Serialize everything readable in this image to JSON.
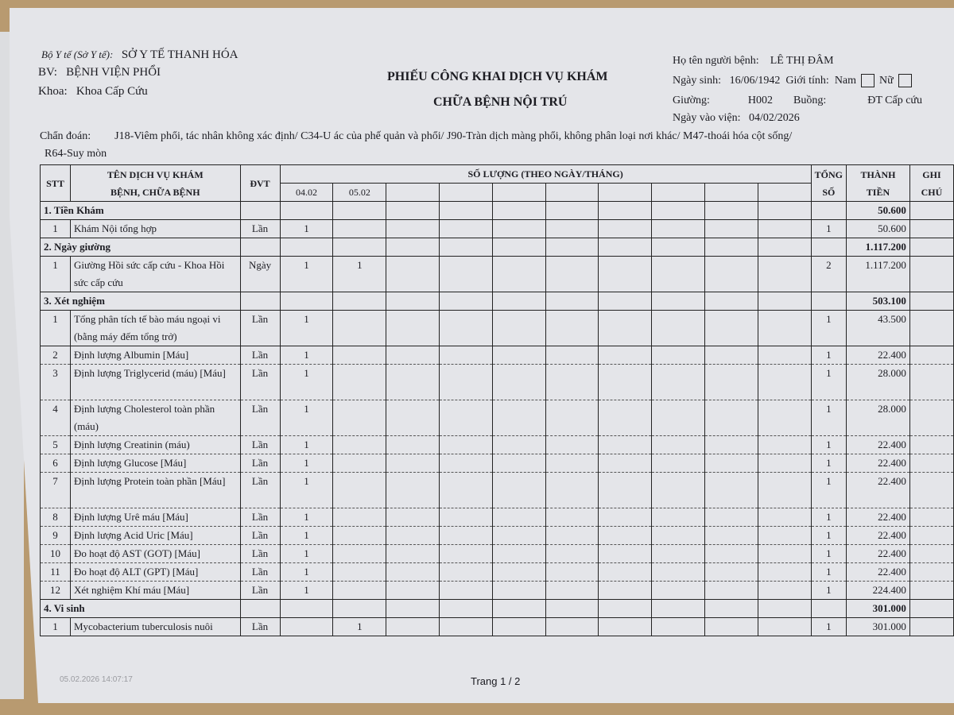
{
  "header": {
    "bo_y_te_label": "Bộ Y tế (Sở Y tế):",
    "bo_y_te": "SỞ Y TẾ THANH HÓA",
    "bv_label": "BV:",
    "bv": "BỆNH VIỆN PHỔI",
    "khoa_label": "Khoa:",
    "khoa": "Khoa Cấp Cứu",
    "title_line1": "PHIẾU CÔNG KHAI DỊCH VỤ KHÁM",
    "title_line2": "CHỮA BỆNH NỘI TRÚ",
    "patient_label": "Họ tên người bệnh:",
    "patient": "LÊ THỊ ĐÂM",
    "dob_label": "Ngày sinh:",
    "dob": "16/06/1942",
    "gender_label": "Giới tính:",
    "male": "Nam",
    "female": "Nữ",
    "bed_label": "Giường:",
    "bed": "H002",
    "room_label": "Buồng:",
    "room": "ĐT Cấp cứu",
    "admit_label": "Ngày vào viện:",
    "admit": "04/02/2026",
    "diag_label": "Chẩn đoán:",
    "diag_line1": "J18-Viêm phổi, tác nhân không xác định/ C34-U ác của phế quản và phổi/ J90-Tràn dịch màng phổi, không phân loại nơi khác/ M47-thoái hóa cột sống/",
    "diag_line2": "R64-Suy mòn"
  },
  "table": {
    "col_stt": "STT",
    "col_name_1": "TÊN DỊCH VỤ KHÁM",
    "col_name_2": "BỆNH, CHỮA BỆNH",
    "col_dvt": "ĐVT",
    "col_qty": "SỐ LƯỢNG (THEO NGÀY/THÁNG)",
    "dates": [
      "04.02",
      "05.02",
      "",
      "",
      "",
      "",
      "",
      "",
      "",
      ""
    ],
    "col_total_1": "TỔNG",
    "col_total_2": "SỐ",
    "col_amount_1": "THÀNH",
    "col_amount_2": "TIỀN",
    "col_note_1": "GHI",
    "col_note_2": "CHÚ",
    "rows": [
      {
        "section": "1. Tiền Khám",
        "amount": "50.600"
      },
      {
        "stt": "1",
        "name": "Khám Nội tổng hợp",
        "dvt": "Lần",
        "d1": "1",
        "d2": "",
        "total": "1",
        "amount": "50.600"
      },
      {
        "section": "2. Ngày giường",
        "amount": "1.117.200"
      },
      {
        "stt": "1",
        "name": "Giường Hồi sức cấp cứu - Khoa Hồi sức cấp cứu",
        "dvt": "Ngày",
        "d1": "1",
        "d2": "1",
        "total": "2",
        "amount": "1.117.200",
        "tall": true
      },
      {
        "section": "3. Xét nghiệm",
        "amount": "503.100"
      },
      {
        "stt": "1",
        "name": "Tổng phân tích tế bào máu ngoại vi (bằng máy đếm tổng trở)",
        "dvt": "Lần",
        "d1": "1",
        "d2": "",
        "total": "1",
        "amount": "43.500",
        "tall": true
      },
      {
        "stt": "2",
        "name": "Định lượng Albumin [Máu]",
        "dvt": "Lần",
        "d1": "1",
        "d2": "",
        "total": "1",
        "amount": "22.400"
      },
      {
        "stt": "3",
        "name": "Định lượng Triglycerid (máu) [Máu]",
        "dvt": "Lần",
        "d1": "1",
        "d2": "",
        "total": "1",
        "amount": "28.000",
        "tall": true
      },
      {
        "stt": "4",
        "name": "Định lượng Cholesterol toàn phần (máu)",
        "dvt": "Lần",
        "d1": "1",
        "d2": "",
        "total": "1",
        "amount": "28.000",
        "tall": true
      },
      {
        "stt": "5",
        "name": "Định lượng Creatinin (máu)",
        "dvt": "Lần",
        "d1": "1",
        "d2": "",
        "total": "1",
        "amount": "22.400"
      },
      {
        "stt": "6",
        "name": "Định lượng Glucose [Máu]",
        "dvt": "Lần",
        "d1": "1",
        "d2": "",
        "total": "1",
        "amount": "22.400"
      },
      {
        "stt": "7",
        "name": "Định lượng Protein toàn phần [Máu]",
        "dvt": "Lần",
        "d1": "1",
        "d2": "",
        "total": "1",
        "amount": "22.400",
        "tall": true
      },
      {
        "stt": "8",
        "name": "Định lượng Urê máu [Máu]",
        "dvt": "Lần",
        "d1": "1",
        "d2": "",
        "total": "1",
        "amount": "22.400"
      },
      {
        "stt": "9",
        "name": "Định lượng Acid Uric [Máu]",
        "dvt": "Lần",
        "d1": "1",
        "d2": "",
        "total": "1",
        "amount": "22.400"
      },
      {
        "stt": "10",
        "name": "Đo hoạt độ AST (GOT) [Máu]",
        "dvt": "Lần",
        "d1": "1",
        "d2": "",
        "total": "1",
        "amount": "22.400"
      },
      {
        "stt": "11",
        "name": "Đo hoạt độ ALT (GPT) [Máu]",
        "dvt": "Lần",
        "d1": "1",
        "d2": "",
        "total": "1",
        "amount": "22.400"
      },
      {
        "stt": "12",
        "name": "Xét nghiệm Khí máu [Máu]",
        "dvt": "Lần",
        "d1": "1",
        "d2": "",
        "total": "1",
        "amount": "224.400"
      },
      {
        "section": "4. Vi sinh",
        "amount": "301.000"
      },
      {
        "stt": "1",
        "name": "Mycobacterium tuberculosis nuôi",
        "dvt": "Lần",
        "d1": "",
        "d2": "1",
        "total": "1",
        "amount": "301.000"
      }
    ]
  },
  "footer": {
    "printed": "05.02.2026 14:07:17",
    "page": "Trang 1 / 2"
  }
}
